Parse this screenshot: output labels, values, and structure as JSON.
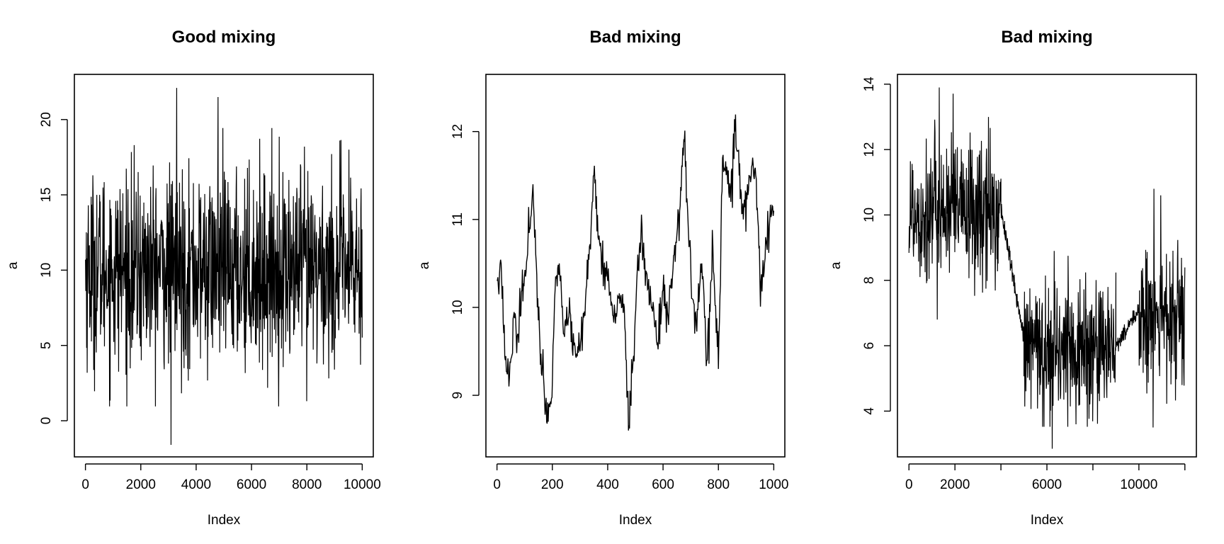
{
  "chart_data": [
    {
      "type": "line",
      "title": "Good mixing",
      "xlabel": "Index",
      "ylabel": "a",
      "xlim": [
        -400,
        10400
      ],
      "ylim": [
        -2.4,
        23
      ],
      "xticks": [
        0,
        2000,
        4000,
        6000,
        8000,
        10000
      ],
      "xtick_labels": [
        "0",
        "2000",
        "4000",
        "6000",
        "8000",
        "10000"
      ],
      "yticks": [
        0,
        5,
        10,
        15,
        20
      ],
      "ytick_labels": [
        "0",
        "5",
        "10",
        "15",
        "20"
      ],
      "grid": false,
      "series": [
        {
          "segments": [
            {
              "x_start": 1,
              "x_end": 10000,
              "center": 10,
              "spread": 3.2,
              "min": -1.6,
              "max": 22.1
            }
          ]
        }
      ]
    },
    {
      "type": "line",
      "title": "Bad mixing",
      "xlabel": "Index",
      "ylabel": "a",
      "xlim": [
        -40,
        1040
      ],
      "ylim": [
        8.3,
        12.65
      ],
      "xticks": [
        0,
        200,
        400,
        600,
        800,
        1000
      ],
      "xtick_labels": [
        "0",
        "200",
        "400",
        "600",
        "800",
        "1000"
      ],
      "yticks": [
        9,
        10,
        11,
        12
      ],
      "ytick_labels": [
        "9",
        "10",
        "11",
        "12"
      ],
      "grid": false,
      "series": [
        {
          "x": [
            1,
            15,
            30,
            45,
            60,
            75,
            90,
            105,
            120,
            130,
            140,
            155,
            170,
            185,
            195,
            210,
            225,
            240,
            260,
            280,
            300,
            320,
            340,
            350,
            365,
            380,
            400,
            420,
            440,
            460,
            475,
            490,
            505,
            520,
            540,
            560,
            580,
            600,
            620,
            640,
            660,
            675,
            690,
            705,
            720,
            740,
            760,
            780,
            800,
            815,
            830,
            845,
            860,
            875,
            890,
            905,
            920,
            935,
            950,
            965,
            980,
            1000
          ],
          "values": [
            10.3,
            10.5,
            9.4,
            9.2,
            9.9,
            9.7,
            10.2,
            10.4,
            10.9,
            11.4,
            10.6,
            9.6,
            9.1,
            8.7,
            8.9,
            10.2,
            10.5,
            9.7,
            9.9,
            9.6,
            9.5,
            10.1,
            10.9,
            11.5,
            10.8,
            10.5,
            10.3,
            9.9,
            10.1,
            10.0,
            8.6,
            9.3,
            10.3,
            10.8,
            10.4,
            10.0,
            9.6,
            10.2,
            9.8,
            10.6,
            11.1,
            11.9,
            11.0,
            10.1,
            9.8,
            10.5,
            9.4,
            10.7,
            9.3,
            11.7,
            11.6,
            11.2,
            12.0,
            11.5,
            11.0,
            11.4,
            11.6,
            11.5,
            10.3,
            10.4,
            10.9,
            11.1
          ]
        }
      ]
    },
    {
      "type": "line",
      "title": "Bad mixing",
      "xlabel": "Index",
      "ylabel": "a",
      "xlim": [
        -500,
        12500
      ],
      "ylim": [
        2.6,
        14.3
      ],
      "xticks": [
        0,
        2000,
        4000,
        6000,
        8000,
        10000,
        12000
      ],
      "xtick_labels": [
        "0",
        "2000",
        "",
        "6000",
        "",
        "10000",
        ""
      ],
      "yticks": [
        4,
        6,
        8,
        10,
        12,
        14
      ],
      "ytick_labels": [
        "4",
        "6",
        "8",
        "10",
        "12",
        "14"
      ],
      "grid": false,
      "series": [
        {
          "segments": [
            {
              "x_start": 1,
              "x_end": 4000,
              "center": 10.1,
              "spread": 1.1,
              "min": 6.8,
              "max": 13.9
            },
            {
              "x_start": 4000,
              "x_end": 5000,
              "trend_from": 10.2,
              "trend_to": 6.2,
              "spread": 0.15
            },
            {
              "x_start": 5000,
              "x_end": 9000,
              "center": 5.9,
              "spread": 1.05,
              "min": 2.85,
              "max": 8.9
            },
            {
              "x_start": 9000,
              "x_end": 10000,
              "trend_from": 6.0,
              "trend_to": 7.1,
              "spread": 0.12
            },
            {
              "x_start": 10000,
              "x_end": 12000,
              "center": 6.8,
              "spread": 1.05,
              "min": 3.5,
              "max": 10.8
            }
          ]
        }
      ]
    }
  ]
}
